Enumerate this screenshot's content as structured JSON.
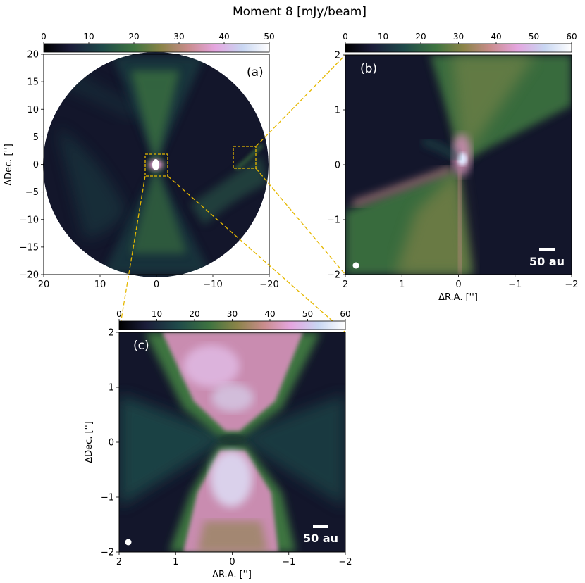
{
  "figure_title": "Moment 8 [mJy/beam]",
  "colormap": [
    "#000000",
    "#1b1d3a",
    "#1f4a4a",
    "#3e7440",
    "#8a8448",
    "#c98c8c",
    "#e5a6e0",
    "#c8d6f2",
    "#ffffff"
  ],
  "chart_data": [
    {
      "type": "heatmap",
      "panel_label": "(a)",
      "colorbar": {
        "min": 0,
        "max": 50,
        "ticks": [
          "0",
          "10",
          "20",
          "30",
          "40",
          "50"
        ]
      },
      "xlim": [
        20,
        -20
      ],
      "ylim": [
        -20,
        20
      ],
      "xticks": [
        "20",
        "10",
        "0",
        "−10",
        "−20"
      ],
      "yticks": [
        "20",
        "15",
        "10",
        "5",
        "0",
        "−5",
        "−10",
        "−15",
        "−20"
      ],
      "ylabel": "ΔDec. ['']",
      "xlabel": "",
      "zoom_boxes": [
        {
          "target": "(c)",
          "x": [
            2,
            -2
          ],
          "y": [
            -2,
            2
          ]
        },
        {
          "target": "(b)",
          "x": [
            -13,
            -17
          ],
          "y": [
            -0.5,
            3.5
          ]
        }
      ]
    },
    {
      "type": "heatmap",
      "panel_label": "(b)",
      "colorbar": {
        "min": 0,
        "max": 60,
        "ticks": [
          "0",
          "10",
          "20",
          "30",
          "40",
          "50",
          "60"
        ]
      },
      "xlim": [
        2,
        -2
      ],
      "ylim": [
        -2,
        2
      ],
      "xticks": [
        "2",
        "1",
        "0",
        "−1",
        "−2"
      ],
      "yticks": [
        "2",
        "1",
        "0",
        "−1",
        "−2"
      ],
      "xlabel": "ΔR.A. ['']",
      "ylabel": "",
      "scalebar": "50 au"
    },
    {
      "type": "heatmap",
      "panel_label": "(c)",
      "colorbar": {
        "min": 0,
        "max": 60,
        "ticks": [
          "0",
          "10",
          "20",
          "30",
          "40",
          "50",
          "60"
        ]
      },
      "xlim": [
        2,
        -2
      ],
      "ylim": [
        -2,
        2
      ],
      "xticks": [
        "2",
        "1",
        "0",
        "−1",
        "−2"
      ],
      "yticks": [
        "2",
        "1",
        "0",
        "−1",
        "−2"
      ],
      "xlabel": "ΔR.A. ['']",
      "ylabel": "ΔDec. ['']",
      "scalebar": "50 au"
    }
  ]
}
